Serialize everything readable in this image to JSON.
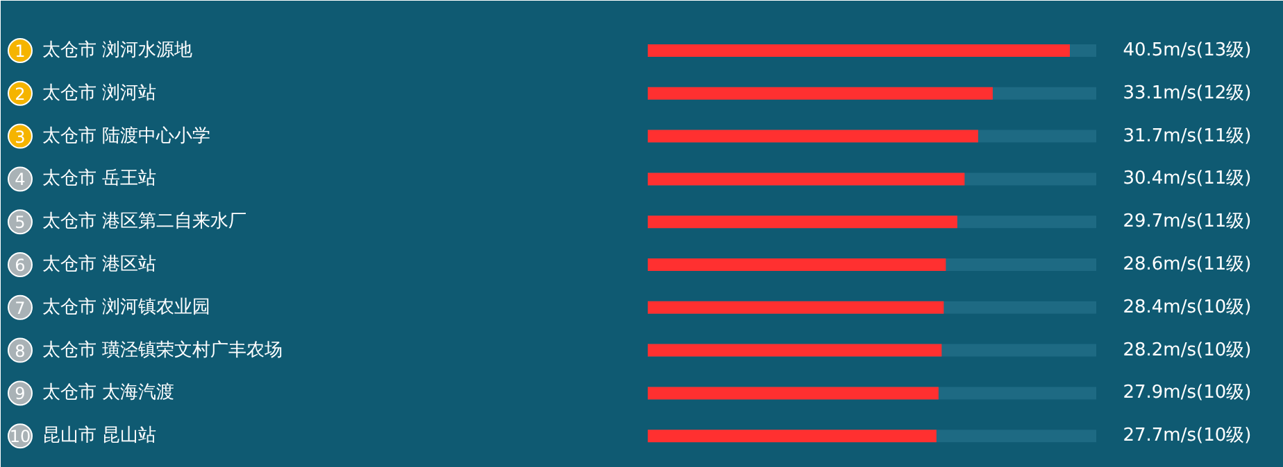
{
  "chart_data": {
    "type": "bar",
    "orientation": "horizontal",
    "categories": [
      "太仓市  浏河水源地",
      "太仓市  浏河站",
      "太仓市  陆渡中心小学",
      "太仓市  岳王站",
      "太仓市  港区第二自来水厂",
      "太仓市  港区站",
      "太仓市  浏河镇农业园",
      "太仓市  璜泾镇荣文村广丰农场",
      "太仓市  太海汽渡",
      "昆山市  昆山站"
    ],
    "values": [
      40.5,
      33.1,
      31.7,
      30.4,
      29.7,
      28.6,
      28.4,
      28.2,
      27.9,
      27.7
    ],
    "value_labels": [
      "40.5m/s",
      "33.1m/s",
      "31.7m/s",
      "30.4m/s",
      "29.7m/s",
      "28.6m/s",
      "28.4m/s",
      "28.2m/s",
      "27.9m/s",
      "27.7m/s"
    ],
    "color": "#ff3030",
    "tick_labels": false,
    "annotations": [
      "1",
      "2",
      "3",
      "4",
      "5",
      "6",
      "7",
      "8",
      "9",
      "10",
      "(13级)",
      "(12级)",
      "(11级)",
      "(11级)",
      "(11级)",
      "(11级)",
      "(10级)",
      "(10级)",
      "(10级)",
      "(10级)"
    ]
  }
}
